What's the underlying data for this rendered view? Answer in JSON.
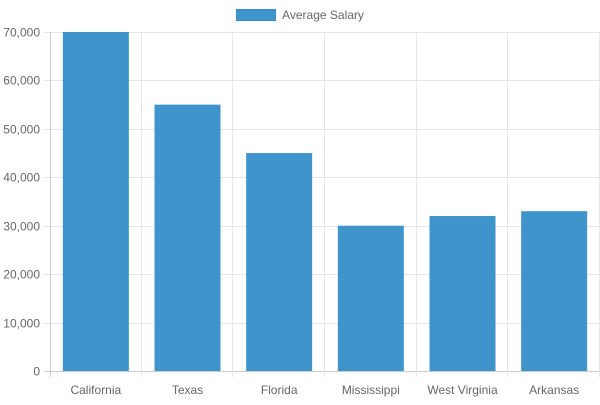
{
  "chart_data": {
    "type": "bar",
    "categories": [
      "California",
      "Texas",
      "Florida",
      "Mississippi",
      "West Virginia",
      "Arkansas"
    ],
    "series": [
      {
        "name": "Average Salary",
        "values": [
          70000,
          55000,
          45000,
          30000,
          32000,
          33000
        ]
      }
    ],
    "ylim": [
      0,
      70000
    ],
    "yticks": [
      0,
      10000,
      20000,
      30000,
      40000,
      50000,
      60000,
      70000
    ],
    "ytick_labels": [
      "0",
      "10,000",
      "20,000",
      "30,000",
      "40,000",
      "50,000",
      "60,000",
      "70,000"
    ],
    "grid": true,
    "legend_position": "top-center"
  },
  "colors": {
    "bar": "#3f94cc",
    "grid": "#e6e6e6",
    "axis_text": "#666666"
  }
}
